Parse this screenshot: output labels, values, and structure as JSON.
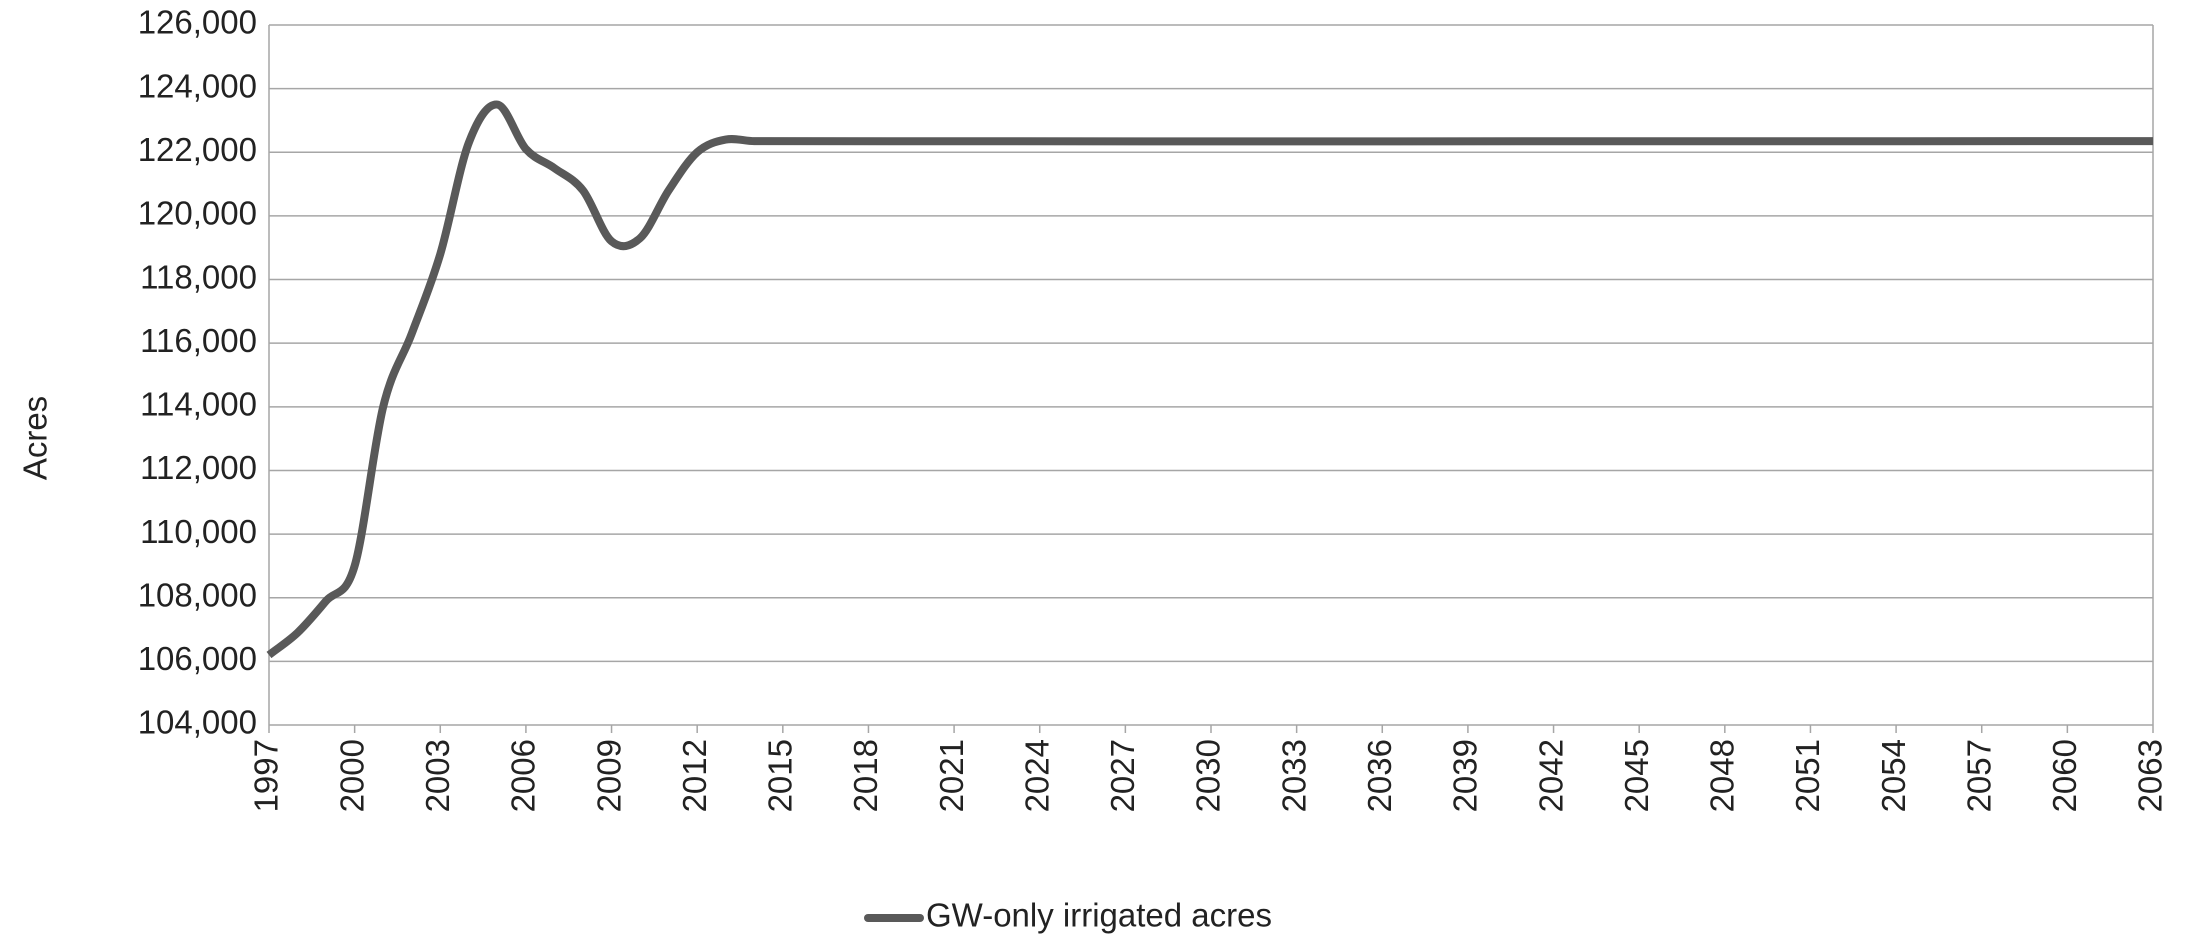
{
  "chart_data": {
    "type": "line",
    "y_label": "Acres",
    "x": [
      1997,
      1998,
      1999,
      2000,
      2001,
      2002,
      2003,
      2004,
      2005,
      2006,
      2007,
      2008,
      2009,
      2010,
      2011,
      2012,
      2013,
      2014,
      2063
    ],
    "series": [
      {
        "name": "GW-only irrigated acres",
        "color": "#595959",
        "values": [
          106200,
          106900,
          107900,
          109000,
          114000,
          116300,
          118800,
          122300,
          123500,
          122100,
          121500,
          120800,
          119200,
          119300,
          120800,
          122000,
          122400,
          122350,
          122350
        ]
      }
    ],
    "xlim": [
      1997,
      2063
    ],
    "xticks": [
      1997,
      2000,
      2003,
      2006,
      2009,
      2012,
      2015,
      2018,
      2021,
      2024,
      2027,
      2030,
      2033,
      2036,
      2039,
      2042,
      2045,
      2048,
      2051,
      2054,
      2057,
      2060,
      2063
    ],
    "ylim": [
      104000,
      126000
    ],
    "yticks": [
      {
        "value": 104000,
        "label": "104,000"
      },
      {
        "value": 106000,
        "label": "106,000"
      },
      {
        "value": 108000,
        "label": "108,000"
      },
      {
        "value": 110000,
        "label": "110,000"
      },
      {
        "value": 112000,
        "label": "112,000"
      },
      {
        "value": 114000,
        "label": "114,000"
      },
      {
        "value": 116000,
        "label": "116,000"
      },
      {
        "value": 118000,
        "label": "118,000"
      },
      {
        "value": 120000,
        "label": "120,000"
      },
      {
        "value": 122000,
        "label": "122,000"
      },
      {
        "value": 124000,
        "label": "124,000"
      },
      {
        "value": 126000,
        "label": "126,000"
      }
    ],
    "grid": true,
    "legend": "bottom"
  }
}
